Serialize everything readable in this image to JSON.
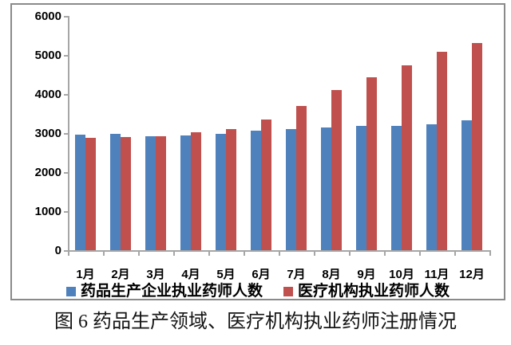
{
  "figure": {
    "caption": "图 6 药品生产领域、医疗机构执业药师注册情况"
  },
  "chart_data": {
    "type": "bar",
    "title": "",
    "categories": [
      "1月",
      "2月",
      "3月",
      "4月",
      "5月",
      "6月",
      "7月",
      "8月",
      "9月",
      "10月",
      "11月",
      "12月"
    ],
    "series": [
      {
        "name": "药品生产企业执业药师人数",
        "color": "#4f81bd",
        "values": [
          2950,
          2980,
          2920,
          2940,
          2975,
          3070,
          3100,
          3150,
          3190,
          3180,
          3220,
          3320
        ]
      },
      {
        "name": "医疗机构执业药师人数",
        "color": "#c0504d",
        "values": [
          2870,
          2890,
          2920,
          3030,
          3110,
          3350,
          3690,
          4100,
          4430,
          4730,
          5080,
          5300
        ]
      }
    ],
    "xlabel": "",
    "ylabel": "",
    "ylim": [
      0,
      6000
    ],
    "ytick_step": 1000,
    "yticks": [
      "0",
      "1000",
      "2000",
      "3000",
      "4000",
      "5000",
      "6000"
    ],
    "grid": false,
    "legend_position": "bottom"
  }
}
